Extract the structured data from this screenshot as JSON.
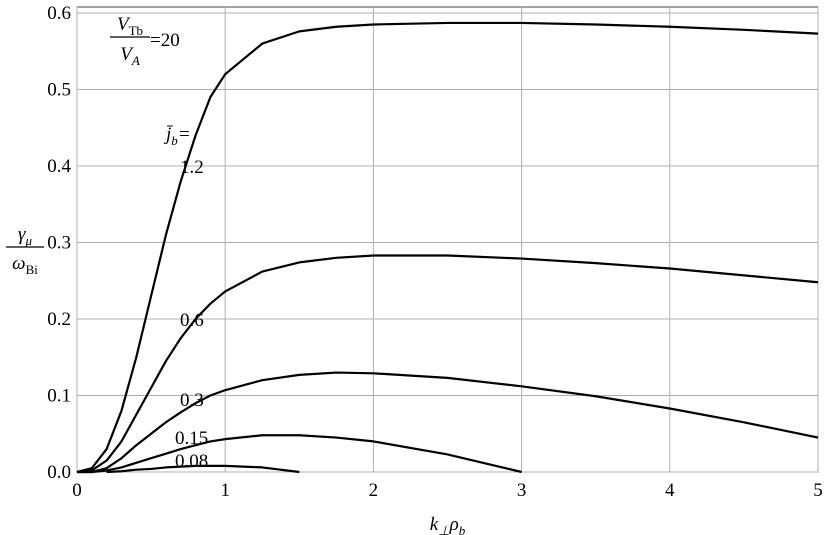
{
  "chart_data": {
    "type": "line",
    "x": [
      0,
      0.1,
      0.2,
      0.3,
      0.4,
      0.5,
      0.6,
      0.7,
      0.8,
      0.9,
      1.0,
      1.25,
      1.5,
      1.75,
      2,
      2.5,
      3,
      3.5,
      4,
      4.5,
      5
    ],
    "series": [
      {
        "name": "1.2",
        "color": "#000000",
        "values": [
          0,
          0.005,
          0.03,
          0.08,
          0.15,
          0.23,
          0.31,
          0.38,
          0.44,
          0.49,
          0.52,
          0.56,
          0.576,
          0.582,
          0.585,
          0.587,
          0.587,
          0.585,
          0.582,
          0.578,
          0.573
        ]
      },
      {
        "name": "0.6",
        "color": "#000000",
        "values": [
          0,
          0.002,
          0.015,
          0.04,
          0.075,
          0.11,
          0.145,
          0.175,
          0.2,
          0.22,
          0.236,
          0.262,
          0.274,
          0.28,
          0.283,
          0.283,
          0.279,
          0.273,
          0.266,
          0.257,
          0.248
        ]
      },
      {
        "name": "0.3",
        "color": "#000000",
        "values": [
          0,
          0,
          0.005,
          0.018,
          0.035,
          0.05,
          0.065,
          0.078,
          0.09,
          0.1,
          0.107,
          0.12,
          0.127,
          0.13,
          0.129,
          0.123,
          0.112,
          0.099,
          0.083,
          0.065,
          0.045
        ]
      },
      {
        "name": "0.15",
        "color": "#000000",
        "values": [
          0,
          0,
          0.002,
          0.006,
          0.012,
          0.018,
          0.024,
          0.03,
          0.035,
          0.04,
          0.043,
          0.048,
          0.048,
          0.045,
          0.04,
          0.023,
          0,
          null,
          null,
          null,
          null
        ]
      },
      {
        "name": "0.08",
        "color": "#000000",
        "values": [
          null,
          null,
          0,
          0.001,
          0.003,
          0.004,
          0.006,
          0.007,
          0.008,
          0.008,
          0.008,
          0.006,
          0,
          null,
          null,
          null,
          null,
          null,
          null,
          null,
          null
        ]
      }
    ],
    "xlim": [
      0,
      5
    ],
    "xticks": [
      0,
      1,
      2,
      3,
      4,
      5
    ],
    "ylim": [
      0,
      0.6
    ],
    "yticks": [
      {
        "value": 0,
        "label": "0.0"
      },
      0.1,
      0.2,
      0.3,
      0.4,
      0.5,
      0.6
    ],
    "grid": true,
    "xlabel": [
      "k",
      "⊥",
      "ρ",
      "b"
    ],
    "ylabel": {
      "numerator": [
        "γ",
        "μ"
      ],
      "denominator": [
        "ω",
        "Bi"
      ]
    },
    "annotations": {
      "ratio": {
        "numerator": [
          "V",
          "Tb"
        ],
        "denominator": [
          "V",
          "A"
        ],
        "value": "=20"
      },
      "legend_title": [
        "j̄",
        "b",
        "="
      ]
    }
  }
}
